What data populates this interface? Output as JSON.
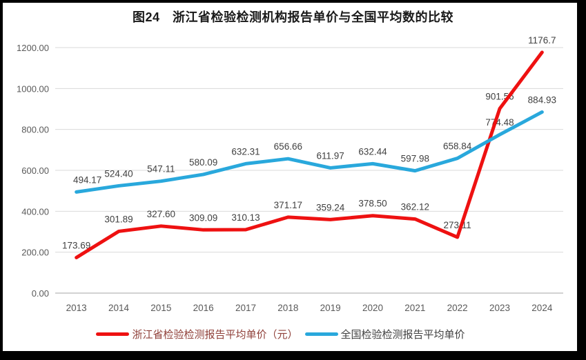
{
  "title": "图24　浙江省检验检测机构报告单价与全国平均数的比较",
  "colors": {
    "zhejiang_line": "#ee1111",
    "national_line": "#29a8dc",
    "legend_zhejiang_text": "#8f3f38",
    "legend_national_text": "#404040",
    "grid_line": "#d9d9d9",
    "axis_line": "#a6a6a6",
    "tick_text": "#595959",
    "data_label_text": "#404040",
    "title_text": "#1a1a1a",
    "frame": "#000000",
    "background": "#ffffff"
  },
  "legend": {
    "items": [
      {
        "label": "浙江省检验检测报告平均单价（元）",
        "series": "zhejiang"
      },
      {
        "label": "全国检验检测报告平均单价",
        "series": "national"
      }
    ]
  },
  "chart_data": {
    "type": "line",
    "title": "图24　浙江省检验检测机构报告单价与全国平均数的比较",
    "categories": [
      "2013",
      "2014",
      "2015",
      "2016",
      "2017",
      "2018",
      "2019",
      "2020",
      "2021",
      "2022",
      "2023",
      "2024"
    ],
    "series": [
      {
        "id": "zhejiang",
        "name": "浙江省检验检测报告平均单价（元）",
        "color": "#ee1111",
        "values": [
          173.69,
          301.89,
          327.6,
          309.09,
          310.13,
          371.17,
          359.24,
          378.5,
          362.12,
          273.11,
          901.56,
          1176.7
        ],
        "labels": [
          "173.69",
          "301.89",
          "327.60",
          "309.09",
          "310.13",
          "371.17",
          "359.24",
          "378.50",
          "362.12",
          "273.11",
          "901.56",
          "1176.7"
        ]
      },
      {
        "id": "national",
        "name": "全国检验检测报告平均单价",
        "color": "#29a8dc",
        "values": [
          494.17,
          524.4,
          547.11,
          580.09,
          632.31,
          656.66,
          611.97,
          632.44,
          597.98,
          658.84,
          774.48,
          884.93
        ],
        "labels": [
          "494.17",
          "524.40",
          "547.11",
          "580.09",
          "632.31",
          "656.66",
          "611.97",
          "632.44",
          "597.98",
          "658.84",
          "774.48",
          "884.93"
        ]
      }
    ],
    "xlabel": "",
    "ylabel": "",
    "ylim": [
      0,
      1200
    ],
    "ytick_values": [
      0,
      200,
      400,
      600,
      800,
      1000,
      1200
    ],
    "ytick_labels": [
      "0.00",
      "200.00",
      "400.00",
      "600.00",
      "800.00",
      "1000.00",
      "1200.00"
    ],
    "grid": true,
    "legend_position": "bottom",
    "data_labels": true
  }
}
